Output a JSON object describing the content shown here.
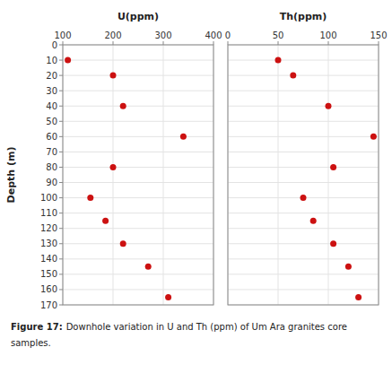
{
  "chart_data": [
    {
      "type": "scatter",
      "x": [
        110,
        200,
        220,
        340,
        200,
        155,
        185,
        220,
        270,
        310
      ],
      "y": [
        10,
        20,
        40,
        60,
        80,
        100,
        115,
        130,
        145,
        165
      ],
      "xlabel": "U(ppm)",
      "ylabel": "Depth (m)",
      "xlim": [
        100,
        400
      ],
      "xticks": [
        100,
        200,
        300,
        400
      ],
      "ylim": [
        170,
        0
      ],
      "yticks": [
        0,
        10,
        20,
        30,
        40,
        50,
        60,
        70,
        80,
        90,
        100,
        110,
        120,
        130,
        140,
        150,
        160,
        170
      ],
      "color": "#cc1111",
      "grid": true,
      "annotations": [
        "Figure 17:",
        "Downhole variation in U and Th (ppm) of Um Ara granites core",
        "samples."
      ]
    },
    {
      "type": "scatter",
      "x": [
        50,
        65,
        100,
        145,
        105,
        75,
        85,
        105,
        120,
        130
      ],
      "y": [
        10,
        20,
        40,
        60,
        80,
        100,
        115,
        130,
        145,
        165
      ],
      "xlabel": "Th(ppm)",
      "xlim": [
        0,
        150
      ],
      "xticks": [
        0,
        50,
        100,
        150
      ],
      "ylim": [
        170,
        0
      ],
      "yticks": [
        0,
        10,
        20,
        30,
        40,
        50,
        60,
        70,
        80,
        90,
        100,
        110,
        120,
        130,
        140,
        150,
        160,
        170
      ],
      "color": "#cc1111",
      "grid": true,
      "tick_labels": "x"
    }
  ]
}
